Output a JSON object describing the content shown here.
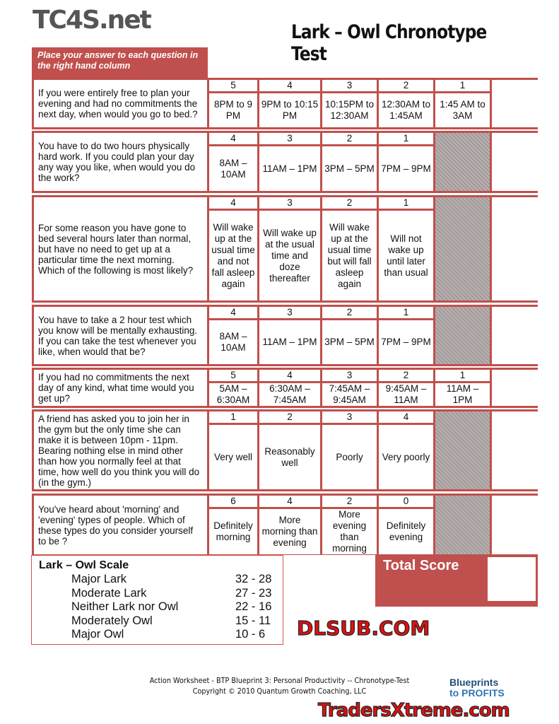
{
  "title": "Lark – Owl Chronotype Test",
  "instructions": "Place your answer to each question in the right hand column",
  "questions": [
    {
      "text": "If you were entirely free to plan your evening and had no commitments the next day, when would you go to bed.?",
      "scores": [
        "5",
        "4",
        "3",
        "2",
        "1"
      ],
      "options": [
        "8PM to 9 PM",
        "9PM to 10:15 PM",
        "10:15PM to 12:30AM",
        "12:30AM to 1:45AM",
        "1:45 AM to 3AM"
      ]
    },
    {
      "text": "You have to do two hours physically hard work. If you could plan your day any way you like, when would you do the work?",
      "scores": [
        "4",
        "3",
        "2",
        "1"
      ],
      "options": [
        "8AM – 10AM",
        "11AM – 1PM",
        "3PM – 5PM",
        "7PM – 9PM"
      ]
    },
    {
      "text": "For some reason you have gone to bed several hours later than normal, but have no need to get up at a particular time the next morning. Which of the following is most likely?",
      "scores": [
        "4",
        "3",
        "2",
        "1"
      ],
      "options": [
        "Will wake up at the usual time and not fall asleep again",
        "Will wake up at the usual time and doze thereafter",
        "Will wake up at the usual time but will fall asleep again",
        "Will not wake up until later than usual"
      ]
    },
    {
      "text": "You have to take a 2 hour test which you know will be mentally exhausting. If you can take the test whenever you like, when would that be?",
      "scores": [
        "4",
        "3",
        "2",
        "1"
      ],
      "options": [
        "8AM – 10AM",
        "11AM – 1PM",
        "3PM – 5PM",
        "7PM – 9PM"
      ]
    },
    {
      "text": "If you had no commitments the next day of any kind, what time would you get up?",
      "scores": [
        "5",
        "4",
        "3",
        "2",
        "1"
      ],
      "options": [
        "5AM – 6:30AM",
        "6:30AM – 7:45AM",
        "7:45AM – 9:45AM",
        "9:45AM – 11AM",
        "11AM – 1PM"
      ]
    },
    {
      "text": "A friend has asked you to join her in the gym but the only time she can make it is between 10pm - 11pm. Bearing nothing else in mind other than how you normally feel at that time, how well do you think you will do (in the gym.)",
      "scores": [
        "1",
        "2",
        "3",
        "4"
      ],
      "options": [
        "Very well",
        "Reasonably well",
        "Poorly",
        "Very poorly"
      ]
    },
    {
      "text": "You've heard about 'morning' and 'evening' types of people. Which of these types do you consider yourself to be ?",
      "scores": [
        "6",
        "4",
        "2",
        "0"
      ],
      "options": [
        "Definitely morning",
        "More morning than evening",
        "More evening than morning",
        "Definitely evening"
      ]
    }
  ],
  "total_score_label": "Total Score",
  "scale": {
    "title": "Lark – Owl Scale",
    "rows": [
      [
        "Major Lark",
        "32 - 28"
      ],
      [
        "Moderate Lark",
        "27 - 23"
      ],
      [
        "Neither Lark nor Owl",
        "22 - 16"
      ],
      [
        "Moderately Owl",
        "15 - 11"
      ],
      [
        "Major Owl",
        "10 - 6"
      ]
    ]
  },
  "footer": {
    "line1": "Action Worksheet - BTP Blueprint 3: Personal Productivity  --  Chronotype-Test",
    "line2": "Copyright © 2010 Quantum Growth Coaching, LLC"
  },
  "logo": {
    "line1": "Blueprints",
    "line2": "to PROFITS"
  },
  "watermarks": [
    "TC4S.net",
    "DLSUB.COM",
    "TradersXtreme.com"
  ],
  "colors": {
    "accent": "#c0504d"
  }
}
